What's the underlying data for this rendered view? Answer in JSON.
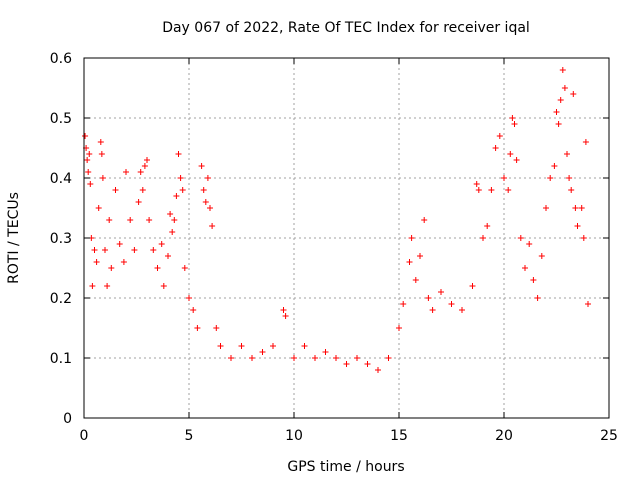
{
  "chart_data": {
    "type": "scatter",
    "title": "Day 067 of 2022, Rate Of TEC Index for receiver iqal",
    "xlabel": "GPS time / hours",
    "ylabel": "ROTI / TECUs",
    "xlim": [
      0,
      25
    ],
    "ylim": [
      0,
      0.6
    ],
    "x_ticks": [
      0,
      5,
      10,
      15,
      20,
      25
    ],
    "y_ticks": [
      0,
      0.1,
      0.2,
      0.3,
      0.4,
      0.5,
      0.6
    ],
    "x_tick_labels": [
      "0",
      "5",
      "10",
      "15",
      "20",
      "25"
    ],
    "y_tick_labels": [
      "0",
      "0.1",
      "0.2",
      "0.3",
      "0.4",
      "0.5",
      "0.6"
    ],
    "grid": true,
    "marker": "plus",
    "color": "#ff0000",
    "series": [
      {
        "points": [
          [
            0.05,
            0.47
          ],
          [
            0.1,
            0.45
          ],
          [
            0.15,
            0.43
          ],
          [
            0.2,
            0.41
          ],
          [
            0.25,
            0.44
          ],
          [
            0.3,
            0.39
          ],
          [
            0.35,
            0.3
          ],
          [
            0.4,
            0.22
          ],
          [
            0.5,
            0.28
          ],
          [
            0.6,
            0.26
          ],
          [
            0.7,
            0.35
          ],
          [
            0.8,
            0.46
          ],
          [
            0.85,
            0.44
          ],
          [
            0.9,
            0.4
          ],
          [
            1.0,
            0.28
          ],
          [
            1.1,
            0.22
          ],
          [
            1.2,
            0.33
          ],
          [
            1.3,
            0.25
          ],
          [
            1.5,
            0.38
          ],
          [
            1.7,
            0.29
          ],
          [
            1.9,
            0.26
          ],
          [
            2.0,
            0.41
          ],
          [
            2.2,
            0.33
          ],
          [
            2.4,
            0.28
          ],
          [
            2.6,
            0.36
          ],
          [
            2.7,
            0.41
          ],
          [
            2.8,
            0.38
          ],
          [
            2.9,
            0.42
          ],
          [
            3.0,
            0.43
          ],
          [
            3.1,
            0.33
          ],
          [
            3.3,
            0.28
          ],
          [
            3.5,
            0.25
          ],
          [
            3.7,
            0.29
          ],
          [
            3.8,
            0.22
          ],
          [
            4.0,
            0.27
          ],
          [
            4.1,
            0.34
          ],
          [
            4.2,
            0.31
          ],
          [
            4.3,
            0.33
          ],
          [
            4.4,
            0.37
          ],
          [
            4.5,
            0.44
          ],
          [
            4.6,
            0.4
          ],
          [
            4.7,
            0.38
          ],
          [
            4.8,
            0.25
          ],
          [
            5.0,
            0.2
          ],
          [
            5.2,
            0.18
          ],
          [
            5.4,
            0.15
          ],
          [
            5.6,
            0.42
          ],
          [
            5.7,
            0.38
          ],
          [
            5.8,
            0.36
          ],
          [
            5.9,
            0.4
          ],
          [
            6.0,
            0.35
          ],
          [
            6.1,
            0.32
          ],
          [
            6.3,
            0.15
          ],
          [
            6.5,
            0.12
          ],
          [
            7.0,
            0.1
          ],
          [
            7.5,
            0.12
          ],
          [
            8.0,
            0.1
          ],
          [
            8.5,
            0.11
          ],
          [
            9.0,
            0.12
          ],
          [
            9.5,
            0.18
          ],
          [
            9.6,
            0.17
          ],
          [
            10.0,
            0.1
          ],
          [
            10.5,
            0.12
          ],
          [
            11.0,
            0.1
          ],
          [
            11.5,
            0.11
          ],
          [
            12.0,
            0.1
          ],
          [
            12.5,
            0.09
          ],
          [
            13.0,
            0.1
          ],
          [
            13.5,
            0.09
          ],
          [
            14.0,
            0.08
          ],
          [
            14.5,
            0.1
          ],
          [
            15.0,
            0.15
          ],
          [
            15.2,
            0.19
          ],
          [
            15.5,
            0.26
          ],
          [
            15.6,
            0.3
          ],
          [
            15.8,
            0.23
          ],
          [
            16.0,
            0.27
          ],
          [
            16.2,
            0.33
          ],
          [
            16.4,
            0.2
          ],
          [
            16.6,
            0.18
          ],
          [
            17.0,
            0.21
          ],
          [
            17.5,
            0.19
          ],
          [
            18.0,
            0.18
          ],
          [
            18.5,
            0.22
          ],
          [
            18.7,
            0.39
          ],
          [
            18.8,
            0.38
          ],
          [
            19.0,
            0.3
          ],
          [
            19.2,
            0.32
          ],
          [
            19.4,
            0.38
          ],
          [
            19.6,
            0.45
          ],
          [
            19.8,
            0.47
          ],
          [
            20.0,
            0.4
          ],
          [
            20.2,
            0.38
          ],
          [
            20.3,
            0.44
          ],
          [
            20.4,
            0.5
          ],
          [
            20.5,
            0.49
          ],
          [
            20.6,
            0.43
          ],
          [
            20.8,
            0.3
          ],
          [
            21.0,
            0.25
          ],
          [
            21.2,
            0.29
          ],
          [
            21.4,
            0.23
          ],
          [
            21.6,
            0.2
          ],
          [
            21.8,
            0.27
          ],
          [
            22.0,
            0.35
          ],
          [
            22.2,
            0.4
          ],
          [
            22.4,
            0.42
          ],
          [
            22.5,
            0.51
          ],
          [
            22.6,
            0.49
          ],
          [
            22.7,
            0.53
          ],
          [
            22.8,
            0.58
          ],
          [
            22.9,
            0.55
          ],
          [
            23.0,
            0.44
          ],
          [
            23.1,
            0.4
          ],
          [
            23.2,
            0.38
          ],
          [
            23.3,
            0.54
          ],
          [
            23.4,
            0.35
          ],
          [
            23.5,
            0.32
          ],
          [
            23.7,
            0.35
          ],
          [
            23.8,
            0.3
          ],
          [
            23.9,
            0.46
          ],
          [
            24.0,
            0.19
          ]
        ]
      }
    ]
  }
}
